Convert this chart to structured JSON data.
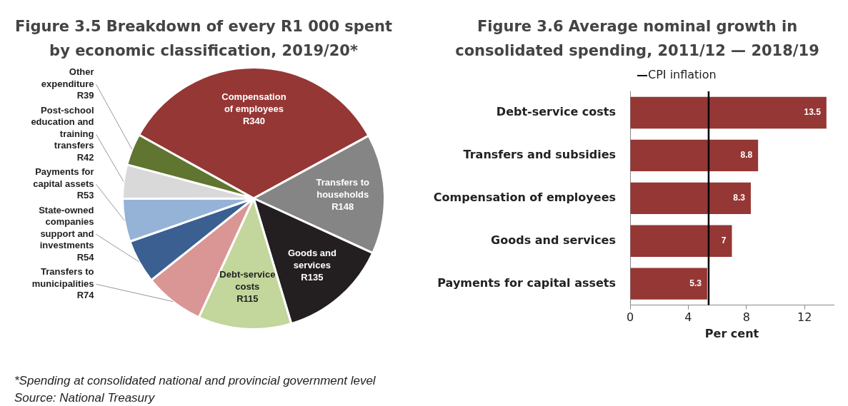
{
  "chart_data": [
    {
      "type": "pie",
      "title": "Figure 3.5 Breakdown of every R1 000 spent by economic classification, 2019/20*",
      "categories": [
        "Compensation of employees",
        "Transfers to households",
        "Goods and services",
        "Debt-service costs",
        "Transfers to municipalities",
        "State-owned companies support and investments",
        "Payments for capital assets",
        "Post-school education and training transfers",
        "Other expenditure"
      ],
      "values": [
        340,
        148,
        135,
        115,
        74,
        54,
        53,
        42,
        39
      ],
      "value_labels": [
        "R340",
        "R148",
        "R135",
        "R115",
        "R74",
        "R54",
        "R53",
        "R42",
        "R39"
      ],
      "colors": [
        "#953735",
        "#858585",
        "#231f20",
        "#c3d69b",
        "#d99694",
        "#3b5f91",
        "#95b3d7",
        "#d9d9d9",
        "#5f7530"
      ],
      "annotations": [
        "*Spending at consolidated national and provincial government level",
        "Source: National Treasury"
      ]
    },
    {
      "type": "bar",
      "orientation": "horizontal",
      "title": "Figure 3.6 Average nominal growth in consolidated spending, 2011/12 — 2018/19",
      "categories": [
        "Debt-service costs",
        "Transfers and subsidies",
        "Compensation of employees",
        "Goods and services",
        "Payments for capital assets"
      ],
      "values": [
        13.5,
        8.8,
        8.3,
        7,
        5.3
      ],
      "color": "#953735",
      "data_labels": true,
      "xlabel": "Per cent",
      "xlim": [
        0,
        14
      ],
      "xticks": [
        0,
        4,
        8,
        12
      ],
      "grid": false,
      "ref_lines": [
        {
          "axis": "x",
          "value": 5.4,
          "label": "CPI inflation",
          "color": "#000000"
        }
      ]
    }
  ]
}
